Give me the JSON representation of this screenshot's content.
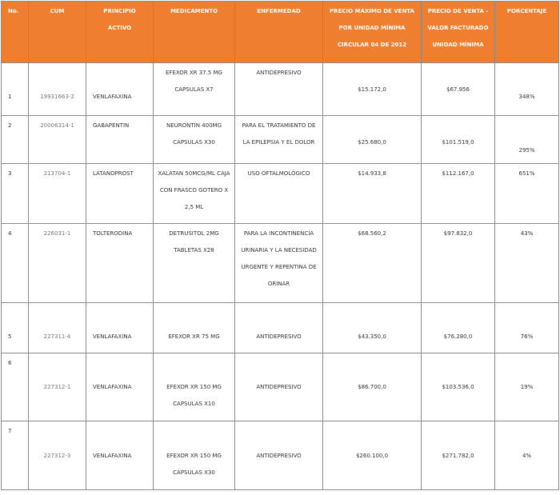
{
  "headers": {
    "no": "No.",
    "cum": "CUM",
    "principio": [
      "PRINCIPIO",
      "ACTIVO"
    ],
    "medicamento": "MEDICAMENTO",
    "enfermedad": "ENFERMEDAD",
    "precio_max": [
      "PRECIO MÁXIMO DE VENTA",
      "POR UNIDAD MÍNIMA",
      "CIRCULAR 04 DE 2012"
    ],
    "precio_venta": [
      "PRECIO DE VENTA -",
      "VALOR FACTURADO",
      "UNIDAD MÍNIMA"
    ],
    "porcentaje": "PORCENTAJE"
  },
  "rows": [
    {
      "no": "1",
      "cum": "19931663-2",
      "principio": "VENLAFAXINA",
      "medicamento": [
        "EFEXOR XR 37.5 MG",
        "CAPSULAS X7"
      ],
      "enfermedad": [
        "ANTIDEPRESIVO"
      ],
      "precio_max": "$15.172,0",
      "precio_venta": "$67.956",
      "porcentaje": "348%"
    },
    {
      "no": "2",
      "cum": "20006314-1",
      "principio": "GABAPENTIN",
      "medicamento": [
        "NEURONTIN 400MG",
        "CAPSULAS X30"
      ],
      "enfermedad": [
        "PARA EL TRATAMIENTO DE",
        "LA EPILEPSIA Y EL DOLOR"
      ],
      "precio_max": "$25.680,0",
      "precio_venta": "$101.519,0",
      "porcentaje": "295%"
    },
    {
      "no": "3",
      "cum": "213704-1",
      "principio": "LATANOPROST",
      "medicamento": [
        "XALATAN 50MCG/ML CAJA",
        "CON FRASCO GOTERO X",
        "2,5 ML"
      ],
      "enfermedad": [
        "USO OFTALMOLÓGICO"
      ],
      "precio_max": "$14.933,8",
      "precio_venta": "$112.167,0",
      "porcentaje": "651%"
    },
    {
      "no": "4",
      "cum": "226031-1",
      "principio": "TOLTERODINA",
      "medicamento": [
        "DETRUSITOL 2MG",
        "TABLETAS X28"
      ],
      "enfermedad": [
        "PARA LA INCONTINENCIA",
        "URINARIA Y LA NECESIDAD",
        "URGENTE Y REPENTINA DE",
        "ORINAR"
      ],
      "precio_max": "$68.560,2",
      "precio_venta": "$97.832,0",
      "porcentaje": "43%"
    },
    {
      "no": "5",
      "cum": "227311-4",
      "principio": "VENLAFAXINA",
      "medicamento": [
        "EFEXOR XR 75 MG"
      ],
      "enfermedad": [
        "ANTIDEPRESIVO"
      ],
      "precio_max": "$43.350,0",
      "precio_venta": "$76.280,0",
      "porcentaje": "76%"
    },
    {
      "no": "6",
      "cum": "227312-1",
      "principio": "VENLAFAXINA",
      "medicamento": [
        "EFEXOR XR 150 MG",
        "CAPSULAS X10"
      ],
      "enfermedad": [
        "ANTIDEPRESIVO"
      ],
      "precio_max": "$86.700,0",
      "precio_venta": "$103.536,0",
      "porcentaje": "19%"
    },
    {
      "no": "7",
      "cum": "227312-3",
      "principio": "VENLAFAXINA",
      "medicamento": [
        "EFEXOR XR 150 MG",
        "CAPSULAS X30"
      ],
      "enfermedad": [
        "ANTIDEPRESIVO"
      ],
      "precio_max": "$260.100,0",
      "precio_venta": "$271.782,0",
      "porcentaje": "4%"
    }
  ]
}
